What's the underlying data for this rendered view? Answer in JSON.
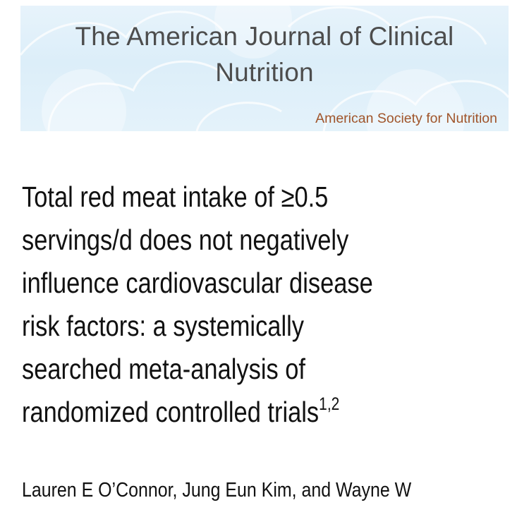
{
  "journal": {
    "title_line1": "The American Journal of Clinical",
    "title_line2": "Nutrition",
    "publisher": "American Society for Nutrition"
  },
  "article": {
    "title_lines": [
      "Total red meat intake of ≥0.5",
      "servings/d does not negatively",
      "influence cardiovascular disease",
      "risk factors: a systemically",
      "searched meta-analysis of",
      "randomized controlled trials"
    ],
    "footnote_marks": "1,2",
    "authors": "Lauren E O’Connor, Jung Eun Kim, and Wayne W"
  },
  "colors": {
    "banner_background": "#dceef9",
    "journal_title": "#4d4d4d",
    "publisher": "#a0552b",
    "body_text": "#111111"
  }
}
